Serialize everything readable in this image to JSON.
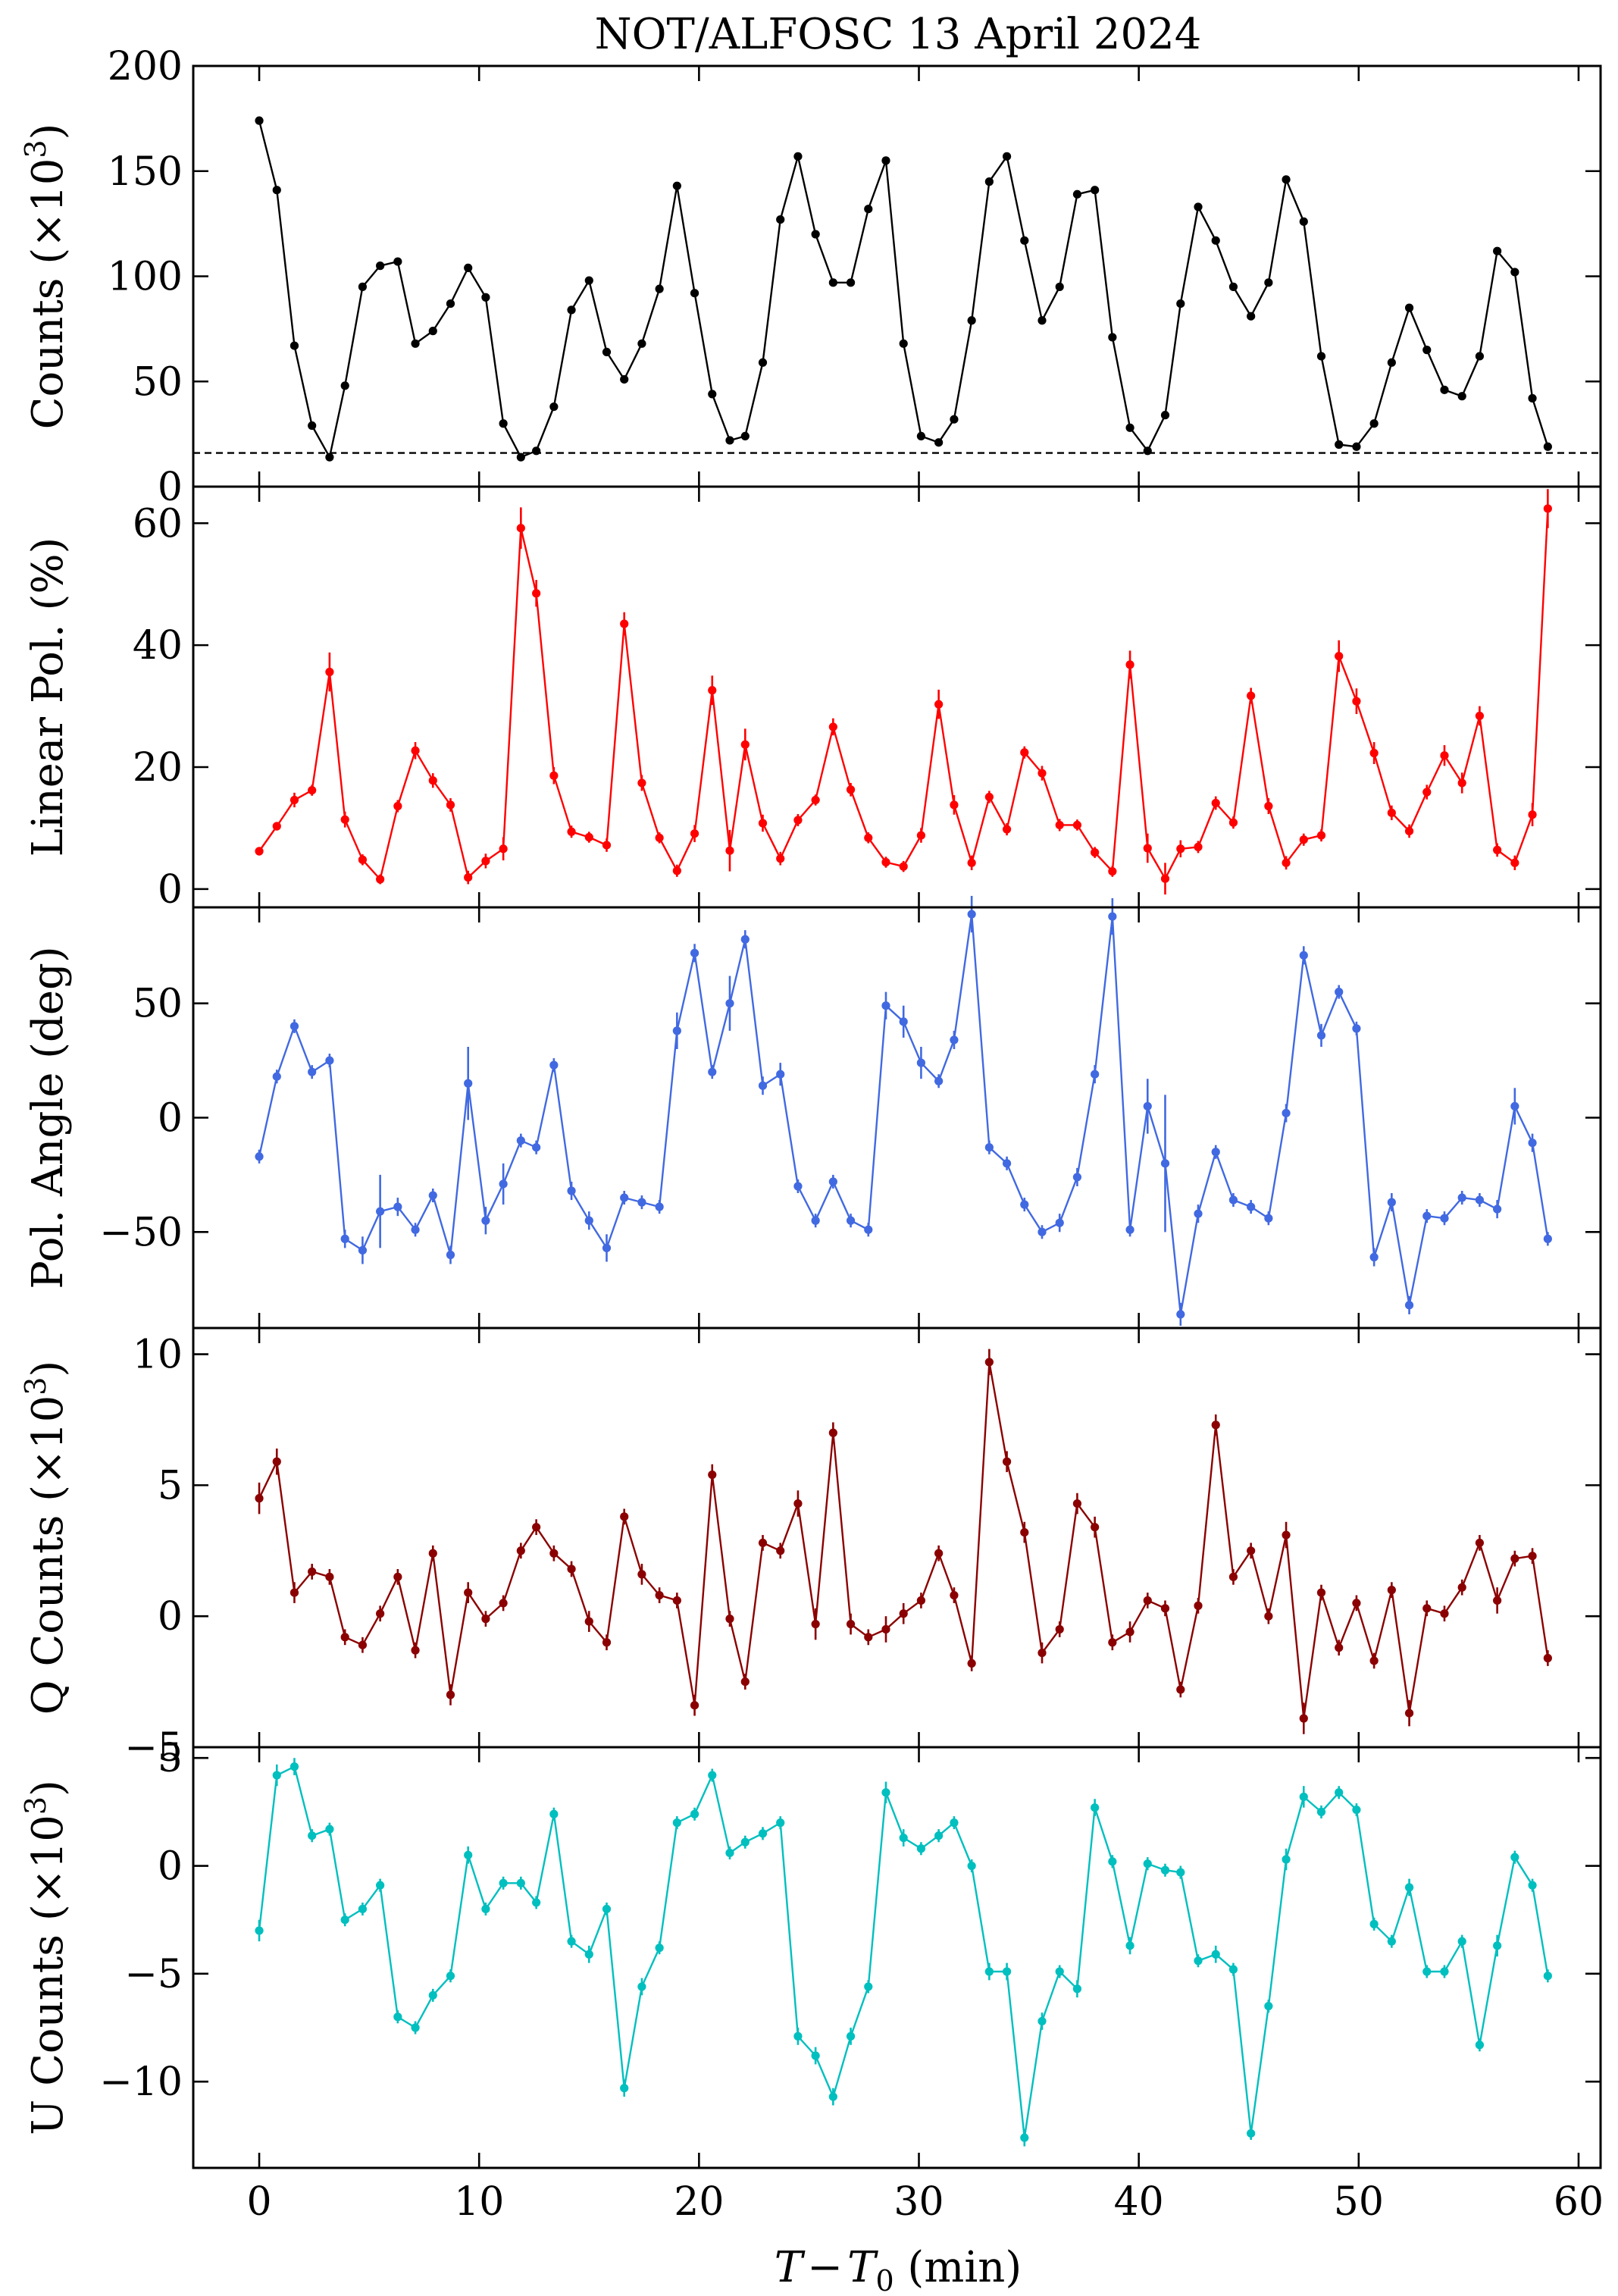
{
  "title": "NOT/ALFOSC 13 April 2024",
  "xlabel": "T − T0 (min)",
  "xlabel_parts": {
    "t": "T",
    "minus": "−",
    "t0": "T",
    "sub": "0",
    "unit": " (min)"
  },
  "x_ticks": [
    "0",
    "10",
    "20",
    "30",
    "40",
    "50",
    "60"
  ],
  "chart_data": [
    {
      "type": "line",
      "name": "counts",
      "color": "#000000",
      "ylabel": "Counts (×10^3)",
      "ylabel_parts": {
        "main": "Counts (×10",
        "sup": "3",
        "close": ")"
      },
      "xlim": [
        -3,
        61
      ],
      "ylim": [
        0,
        200
      ],
      "y_ticks": [
        0,
        50,
        100,
        150,
        200
      ],
      "y_tick_labels": [
        "0",
        "50",
        "100",
        "150",
        "200"
      ],
      "reference_line": 16,
      "x": [
        0,
        0.8,
        1.6,
        2.4,
        3.2,
        3.9,
        4.7,
        5.5,
        6.3,
        7.1,
        7.9,
        8.7,
        9.5,
        10.3,
        11.1,
        11.9,
        12.6,
        13.4,
        14.2,
        15,
        15.8,
        16.6,
        17.4,
        18.2,
        19,
        19.8,
        20.6,
        21.4,
        22.1,
        22.9,
        23.7,
        24.5,
        25.3,
        26.1,
        26.9,
        27.7,
        28.5,
        29.3,
        30.1,
        30.9,
        31.6,
        32.4,
        33.2,
        34,
        34.8,
        35.6,
        36.4,
        37.2,
        38,
        38.8,
        39.6,
        40.4,
        41.2,
        41.9,
        42.7,
        43.5,
        44.3,
        45.1,
        45.9,
        46.7,
        47.5,
        48.3,
        49.1,
        49.9,
        50.7,
        51.5,
        52.3,
        53.1,
        53.9,
        54.7,
        55.5,
        56.3,
        57.1,
        57.9,
        58.6
      ],
      "y": [
        174,
        141,
        67,
        29,
        14,
        48,
        95,
        105,
        107,
        68,
        74,
        87,
        104,
        90,
        30,
        14,
        17,
        38,
        84,
        98,
        64,
        51,
        68,
        94,
        143,
        92,
        44,
        22,
        24,
        59,
        127,
        157,
        120,
        97,
        97,
        132,
        155,
        68,
        24,
        21,
        32,
        79,
        145,
        157,
        117,
        79,
        95,
        139,
        141,
        71,
        28,
        17,
        34,
        87,
        133,
        117,
        95,
        81,
        97,
        146,
        126,
        62,
        20,
        19,
        30,
        59,
        85,
        65,
        46,
        43,
        62,
        112,
        102,
        42,
        19
      ],
      "yerr": []
    },
    {
      "type": "line",
      "name": "linear-pol",
      "color": "#ff0000",
      "ylabel": "Linear Pol. (%)",
      "xlim": [
        -3,
        61
      ],
      "ylim": [
        -3,
        66
      ],
      "y_ticks": [
        0,
        20,
        40,
        60
      ],
      "y_tick_labels": [
        "0",
        "20",
        "40",
        "60"
      ],
      "x": [
        0,
        0.8,
        1.6,
        2.4,
        3.2,
        3.9,
        4.7,
        5.5,
        6.3,
        7.1,
        7.9,
        8.7,
        9.5,
        10.3,
        11.1,
        11.9,
        12.6,
        13.4,
        14.2,
        15,
        15.8,
        16.6,
        17.4,
        18.2,
        19,
        19.8,
        20.6,
        21.4,
        22.1,
        22.9,
        23.7,
        24.5,
        25.3,
        26.1,
        26.9,
        27.7,
        28.5,
        29.3,
        30.1,
        30.9,
        31.6,
        32.4,
        33.2,
        34,
        34.8,
        35.6,
        36.4,
        37.2,
        38,
        38.8,
        39.6,
        40.4,
        41.2,
        41.9,
        42.7,
        43.5,
        44.3,
        45.1,
        45.9,
        46.7,
        47.5,
        48.3,
        49.1,
        49.9,
        50.7,
        51.5,
        52.3,
        53.1,
        53.9,
        54.7,
        55.5,
        56.3,
        57.1,
        57.9,
        58.6
      ],
      "y": [
        6.2,
        10.3,
        14.6,
        16.2,
        35.6,
        11.4,
        4.8,
        1.6,
        13.6,
        22.7,
        17.8,
        13.8,
        1.9,
        4.6,
        6.6,
        59.2,
        48.5,
        18.6,
        9.4,
        8.5,
        7.2,
        43.5,
        17.4,
        8.4,
        3,
        9.1,
        32.6,
        6.3,
        23.7,
        10.8,
        5,
        11.3,
        14.6,
        26.6,
        16.3,
        8.4,
        4.4,
        3.7,
        8.8,
        30.3,
        13.8,
        4.3,
        15.1,
        9.8,
        22.4,
        19,
        10.5,
        10.5,
        6,
        2.9,
        36.8,
        6.7,
        1.7,
        6.6,
        6.9,
        14.1,
        10.9,
        31.7,
        13.6,
        4.3,
        8.1,
        8.8,
        38.2,
        30.8,
        22.3,
        12.5,
        9.5,
        15.9,
        21.9,
        17.4,
        28.4,
        6.4,
        4.3,
        12.2,
        62.4
      ],
      "yerr": [
        0.7,
        0.7,
        1.2,
        0.9,
        3.2,
        1.3,
        0.9,
        0.8,
        1,
        1.4,
        1.2,
        1.1,
        1.1,
        1.2,
        1.9,
        3.4,
        2.2,
        1.4,
        1,
        0.9,
        1.1,
        1.9,
        1.3,
        0.9,
        1,
        1.4,
        2.4,
        3.4,
        2.6,
        1.4,
        1.1,
        1,
        0.9,
        1.4,
        1.1,
        0.9,
        0.9,
        0.9,
        1.2,
        2.4,
        1.6,
        1.2,
        1,
        1,
        1,
        1.2,
        1,
        0.9,
        0.9,
        0.9,
        2.3,
        2.4,
        2.6,
        1.4,
        1,
        1.1,
        1,
        1.3,
        1.3,
        1.1,
        1,
        1,
        2.6,
        2.1,
        1.8,
        1.2,
        1.1,
        1.2,
        1.7,
        1.7,
        1.6,
        1.1,
        1.2,
        1.9,
        3.2
      ]
    },
    {
      "type": "line",
      "name": "pol-angle",
      "color": "#4169e1",
      "ylabel": "Pol. Angle (deg)",
      "xlim": [
        -3,
        61
      ],
      "ylim": [
        -92,
        92
      ],
      "y_ticks": [
        -50,
        0,
        50
      ],
      "y_tick_labels": [
        "−50",
        "0",
        "50"
      ],
      "x": [
        0,
        0.8,
        1.6,
        2.4,
        3.2,
        3.9,
        4.7,
        5.5,
        6.3,
        7.1,
        7.9,
        8.7,
        9.5,
        10.3,
        11.1,
        11.9,
        12.6,
        13.4,
        14.2,
        15,
        15.8,
        16.6,
        17.4,
        18.2,
        19,
        19.8,
        20.6,
        21.4,
        22.1,
        22.9,
        23.7,
        24.5,
        25.3,
        26.1,
        26.9,
        27.7,
        28.5,
        29.3,
        30.1,
        30.9,
        31.6,
        32.4,
        33.2,
        34,
        34.8,
        35.6,
        36.4,
        37.2,
        38,
        38.8,
        39.6,
        40.4,
        41.2,
        41.9,
        42.7,
        43.5,
        44.3,
        45.1,
        45.9,
        46.7,
        47.5,
        48.3,
        49.1,
        49.9,
        50.7,
        51.5,
        52.3,
        53.1,
        53.9,
        54.7,
        55.5,
        56.3,
        57.1,
        57.9,
        58.6
      ],
      "y": [
        -17,
        18,
        40,
        20,
        25,
        -53,
        -58,
        -41,
        -39,
        -49,
        -34,
        -60,
        15,
        -45,
        -29,
        -10,
        -13,
        23,
        -32,
        -45,
        -57,
        -35,
        -37,
        -39,
        38,
        72,
        20,
        50,
        78,
        14,
        19,
        -30,
        -45,
        -28,
        -45,
        -49,
        49,
        42,
        24,
        16,
        34,
        89,
        -13,
        -20,
        -38,
        -50,
        -46,
        -26,
        19,
        88,
        -49,
        5,
        -20,
        -86,
        -42,
        -15,
        -36,
        -39,
        -44,
        2,
        71,
        36,
        55,
        39,
        -61,
        -37,
        -82,
        -43,
        -44,
        -35,
        -36,
        -40,
        5,
        -11,
        -53
      ],
      "yerr": [
        3,
        3,
        3,
        3,
        3,
        4,
        6,
        16,
        4,
        3,
        3,
        4,
        16,
        6,
        9,
        3,
        3,
        3,
        4,
        4,
        6,
        3,
        3,
        3,
        8,
        4,
        3,
        12,
        4,
        4,
        5,
        3,
        3,
        3,
        3,
        3,
        6,
        7,
        7,
        3,
        4,
        8,
        3,
        3,
        3,
        3,
        4,
        4,
        4,
        8,
        3,
        12,
        30,
        5,
        4,
        3,
        3,
        3,
        3,
        4,
        4,
        5,
        3,
        3,
        4,
        4,
        4,
        3,
        3,
        3,
        3,
        4,
        8,
        4,
        3
      ]
    },
    {
      "type": "line",
      "name": "q-counts",
      "color": "#8b0000",
      "ylabel": "Q Counts (×10^3)",
      "ylabel_parts": {
        "main": "Q Counts (×10",
        "sup": "3",
        "close": ")"
      },
      "xlim": [
        -3,
        61
      ],
      "ylim": [
        -5,
        11
      ],
      "y_ticks": [
        -5,
        0,
        5,
        10
      ],
      "y_tick_labels": [
        "−5",
        "0",
        "5",
        "10"
      ],
      "x": [
        0,
        0.8,
        1.6,
        2.4,
        3.2,
        3.9,
        4.7,
        5.5,
        6.3,
        7.1,
        7.9,
        8.7,
        9.5,
        10.3,
        11.1,
        11.9,
        12.6,
        13.4,
        14.2,
        15,
        15.8,
        16.6,
        17.4,
        18.2,
        19,
        19.8,
        20.6,
        21.4,
        22.1,
        22.9,
        23.7,
        24.5,
        25.3,
        26.1,
        26.9,
        27.7,
        28.5,
        29.3,
        30.1,
        30.9,
        31.6,
        32.4,
        33.2,
        34,
        34.8,
        35.6,
        36.4,
        37.2,
        38,
        38.8,
        39.6,
        40.4,
        41.2,
        41.9,
        42.7,
        43.5,
        44.3,
        45.1,
        45.9,
        46.7,
        47.5,
        48.3,
        49.1,
        49.9,
        50.7,
        51.5,
        52.3,
        53.1,
        53.9,
        54.7,
        55.5,
        56.3,
        57.1,
        57.9,
        58.6
      ],
      "y": [
        4.5,
        5.9,
        0.9,
        1.7,
        1.5,
        -0.8,
        -1.1,
        0.1,
        1.5,
        -1.3,
        2.4,
        -3,
        0.9,
        -0.1,
        0.5,
        2.5,
        3.4,
        2.4,
        1.8,
        -0.2,
        -1,
        3.8,
        1.6,
        0.8,
        0.6,
        -3.4,
        5.4,
        -0.1,
        -2.5,
        2.8,
        2.5,
        4.3,
        -0.3,
        7,
        -0.3,
        -0.8,
        -0.5,
        0.1,
        0.6,
        2.4,
        0.8,
        -1.8,
        9.7,
        5.9,
        3.2,
        -1.4,
        -0.5,
        4.3,
        3.4,
        -1,
        -0.6,
        0.6,
        0.3,
        -2.8,
        0.4,
        7.3,
        1.5,
        2.5,
        0,
        3.1,
        -3.9,
        0.9,
        -1.2,
        0.5,
        -1.7,
        1,
        -3.7,
        0.3,
        0.1,
        1.1,
        2.8,
        0.6,
        2.2,
        2.3,
        -1.6
      ],
      "yerr": [
        0.6,
        0.5,
        0.4,
        0.3,
        0.3,
        0.3,
        0.3,
        0.3,
        0.3,
        0.3,
        0.3,
        0.4,
        0.4,
        0.3,
        0.3,
        0.3,
        0.3,
        0.3,
        0.3,
        0.4,
        0.3,
        0.3,
        0.4,
        0.3,
        0.3,
        0.4,
        0.4,
        0.3,
        0.3,
        0.3,
        0.3,
        0.5,
        0.6,
        0.4,
        0.4,
        0.3,
        0.5,
        0.4,
        0.3,
        0.3,
        0.3,
        0.3,
        0.5,
        0.4,
        0.4,
        0.4,
        0.3,
        0.4,
        0.4,
        0.3,
        0.4,
        0.3,
        0.3,
        0.3,
        0.3,
        0.4,
        0.3,
        0.3,
        0.3,
        0.5,
        0.6,
        0.3,
        0.3,
        0.3,
        0.3,
        0.3,
        0.5,
        0.3,
        0.3,
        0.3,
        0.3,
        0.5,
        0.3,
        0.3,
        0.3
      ]
    },
    {
      "type": "line",
      "name": "u-counts",
      "color": "#00bfbf",
      "ylabel": "U Counts (×10^3)",
      "ylabel_parts": {
        "main": "U Counts (×10",
        "sup": "3",
        "close": ")"
      },
      "xlim": [
        -3,
        61
      ],
      "ylim": [
        -14,
        5.5
      ],
      "y_ticks": [
        -10,
        -5,
        0,
        5
      ],
      "y_tick_labels": [
        "−10",
        "−5",
        "0",
        "5"
      ],
      "x": [
        0,
        0.8,
        1.6,
        2.4,
        3.2,
        3.9,
        4.7,
        5.5,
        6.3,
        7.1,
        7.9,
        8.7,
        9.5,
        10.3,
        11.1,
        11.9,
        12.6,
        13.4,
        14.2,
        15,
        15.8,
        16.6,
        17.4,
        18.2,
        19,
        19.8,
        20.6,
        21.4,
        22.1,
        22.9,
        23.7,
        24.5,
        25.3,
        26.1,
        26.9,
        27.7,
        28.5,
        29.3,
        30.1,
        30.9,
        31.6,
        32.4,
        33.2,
        34,
        34.8,
        35.6,
        36.4,
        37.2,
        38,
        38.8,
        39.6,
        40.4,
        41.2,
        41.9,
        42.7,
        43.5,
        44.3,
        45.1,
        45.9,
        46.7,
        47.5,
        48.3,
        49.1,
        49.9,
        50.7,
        51.5,
        52.3,
        53.1,
        53.9,
        54.7,
        55.5,
        56.3,
        57.1,
        57.9,
        58.6
      ],
      "y": [
        -3,
        4.2,
        4.6,
        1.4,
        1.7,
        -2.5,
        -2,
        -0.9,
        -7,
        -7.5,
        -6,
        -5.1,
        0.5,
        -2,
        -0.8,
        -0.8,
        -1.7,
        2.4,
        -3.5,
        -4.1,
        -2,
        -10.3,
        -5.6,
        -3.8,
        2,
        2.4,
        4.2,
        0.6,
        1.1,
        1.5,
        2,
        -7.9,
        -8.8,
        -10.7,
        -7.9,
        -5.6,
        3.4,
        1.3,
        0.8,
        1.4,
        2,
        0,
        -4.9,
        -4.9,
        -12.6,
        -7.2,
        -4.9,
        -5.7,
        2.7,
        0.2,
        -3.7,
        0.1,
        -0.2,
        -0.3,
        -4.4,
        -4.1,
        -4.8,
        -12.4,
        -6.5,
        0.3,
        3.2,
        2.5,
        3.4,
        2.6,
        -2.7,
        -3.5,
        -1,
        -4.9,
        -4.9,
        -3.5,
        -8.3,
        -3.7,
        0.4,
        -0.9,
        -5.1
      ],
      "yerr": [
        0.5,
        0.5,
        0.4,
        0.3,
        0.3,
        0.3,
        0.3,
        0.3,
        0.3,
        0.3,
        0.3,
        0.3,
        0.4,
        0.3,
        0.3,
        0.3,
        0.3,
        0.3,
        0.3,
        0.4,
        0.3,
        0.4,
        0.4,
        0.3,
        0.3,
        0.3,
        0.3,
        0.3,
        0.3,
        0.3,
        0.3,
        0.4,
        0.4,
        0.4,
        0.4,
        0.3,
        0.5,
        0.4,
        0.3,
        0.3,
        0.3,
        0.3,
        0.4,
        0.4,
        0.4,
        0.4,
        0.3,
        0.4,
        0.4,
        0.3,
        0.4,
        0.3,
        0.3,
        0.3,
        0.3,
        0.4,
        0.3,
        0.3,
        0.3,
        0.5,
        0.5,
        0.3,
        0.3,
        0.3,
        0.3,
        0.3,
        0.4,
        0.3,
        0.3,
        0.3,
        0.3,
        0.5,
        0.3,
        0.3,
        0.3
      ]
    }
  ]
}
